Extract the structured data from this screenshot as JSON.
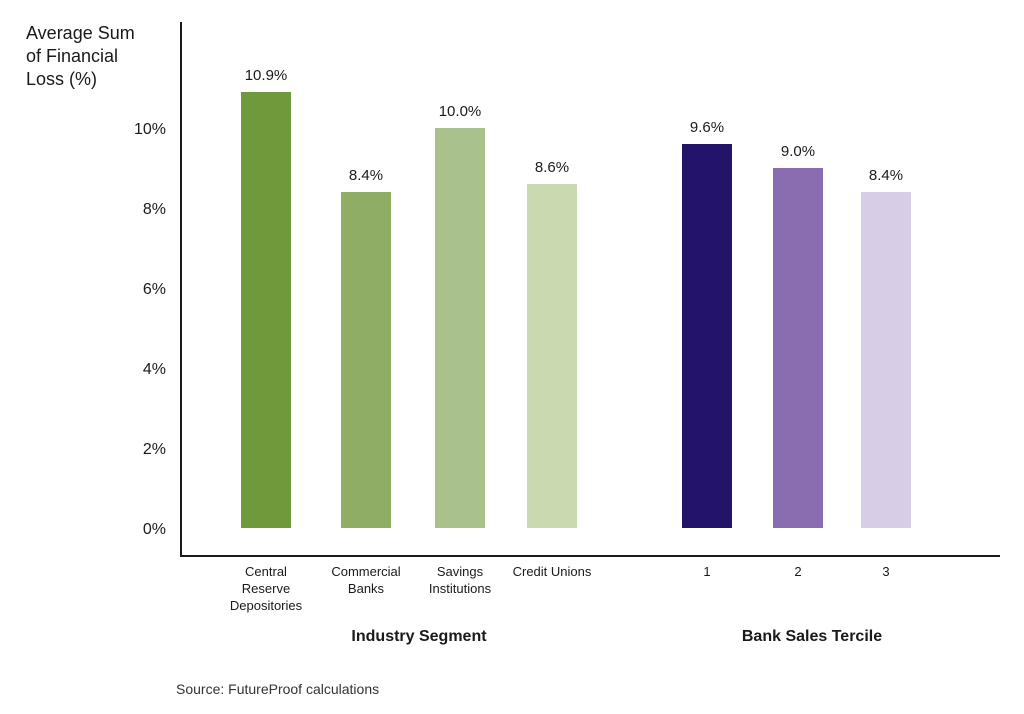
{
  "chart_data": {
    "type": "bar",
    "ylabel": [
      "Average Sum",
      "of Financial",
      "Loss (%)"
    ],
    "ylim": [
      0,
      12
    ],
    "yticks": [
      "0%",
      "2%",
      "4%",
      "6%",
      "8%",
      "10%"
    ],
    "grid": false,
    "groups": [
      {
        "label": "Industry Segment",
        "bars": [
          {
            "category": [
              "Central",
              "Reserve",
              "Depositories"
            ],
            "value": 10.9,
            "label": "10.9%",
            "color": "#6e9a3c"
          },
          {
            "category": [
              "Commercial",
              "Banks"
            ],
            "value": 8.4,
            "label": "8.4%",
            "color": "#8fae63"
          },
          {
            "category": [
              "Savings",
              "Institutions"
            ],
            "value": 10.0,
            "label": "10.0%",
            "color": "#a9c28b"
          },
          {
            "category": [
              "Credit Unions"
            ],
            "value": 8.6,
            "label": "8.6%",
            "color": "#c9d9b0"
          }
        ]
      },
      {
        "label": "Bank Sales Tercile",
        "bars": [
          {
            "category": [
              "1"
            ],
            "value": 9.6,
            "label": "9.6%",
            "color": "#23146a"
          },
          {
            "category": [
              "2"
            ],
            "value": 9.0,
            "label": "9.0%",
            "color": "#8a6db0"
          },
          {
            "category": [
              "3"
            ],
            "value": 8.4,
            "label": "8.4%",
            "color": "#d8cde6"
          }
        ]
      }
    ],
    "source": "Source: FutureProof calculations"
  }
}
